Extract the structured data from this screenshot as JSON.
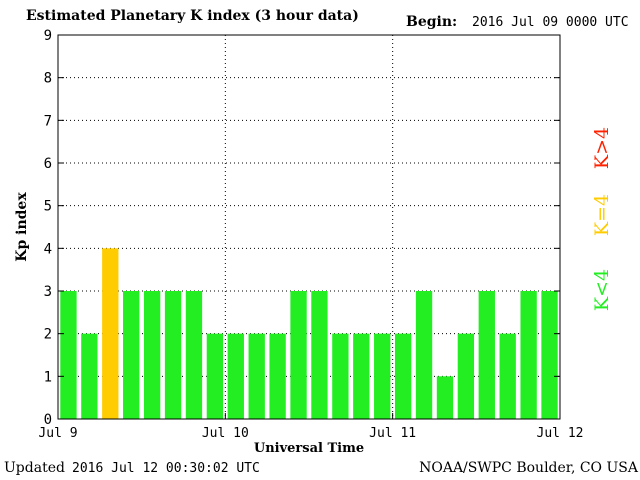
{
  "header": {
    "title": "Estimated Planetary K index (3 hour data)",
    "begin_label": "Begin:",
    "begin_value": "2016 Jul 09 0000 UTC"
  },
  "footer": {
    "updated_label": "Updated",
    "updated_value": "2016 Jul 12 00:30:02 UTC",
    "credit": "NOAA/SWPC Boulder, CO USA"
  },
  "colors": {
    "below_4": "#22ee22",
    "equal_4": "#ffcc00",
    "above_4": "#ff2200",
    "grid": "#000000"
  },
  "chart_data": {
    "type": "bar",
    "title": "Estimated Planetary K index (3 hour data)",
    "xlabel": "Universal Time",
    "ylabel": "Kp index",
    "ylim": [
      0,
      9
    ],
    "yticks": [
      "0",
      "1",
      "2",
      "3",
      "4",
      "5",
      "6",
      "7",
      "8",
      "9"
    ],
    "xticks": [
      "Jul 9",
      "Jul 10",
      "Jul 11",
      "Jul 12"
    ],
    "values": [
      3,
      2,
      4,
      3,
      3,
      3,
      3,
      2,
      2,
      2,
      2,
      3,
      3,
      2,
      2,
      2,
      2,
      3,
      1,
      2,
      3,
      2,
      3,
      3
    ],
    "grid": true,
    "legend": [
      {
        "label": "K<4",
        "color": "#22ee22"
      },
      {
        "label": "K=4",
        "color": "#ffcc00"
      },
      {
        "label": "K>4",
        "color": "#ff2200"
      }
    ],
    "legend_position": "right"
  }
}
